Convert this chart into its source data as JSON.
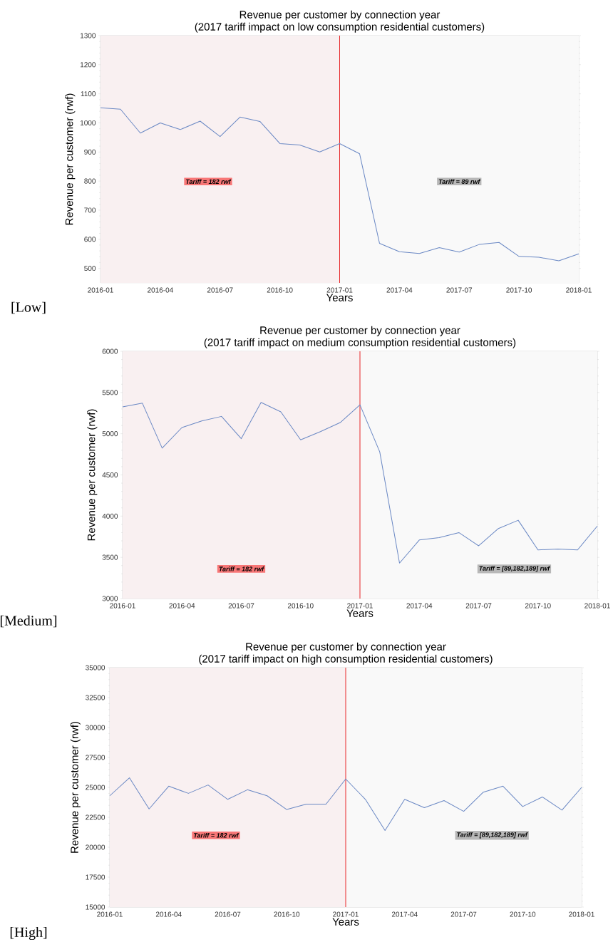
{
  "chart_data": [
    {
      "type": "line",
      "title": "Revenue per customer by connection year",
      "subtitle": "(2017 tariff impact on low consumption residential customers)",
      "xlabel": "Years",
      "ylabel": "Revenue per customer  (rwf)",
      "x": [
        "2016-01",
        "2016-02",
        "2016-03",
        "2016-04",
        "2016-05",
        "2016-06",
        "2016-07",
        "2016-08",
        "2016-09",
        "2016-10",
        "2016-11",
        "2016-12",
        "2017-01",
        "2017-02",
        "2017-03",
        "2017-04",
        "2017-05",
        "2017-06",
        "2017-07",
        "2017-08",
        "2017-09",
        "2017-10",
        "2017-11",
        "2017-12",
        "2018-01"
      ],
      "series": [
        {
          "color": "#6a88c4",
          "values": [
            1052,
            1047,
            965,
            1000,
            977,
            1006,
            953,
            1020,
            1005,
            929,
            924,
            900,
            929,
            894,
            586,
            557,
            551,
            571,
            556,
            582,
            589,
            541,
            538,
            526,
            550
          ]
        }
      ],
      "xlim": [
        "2016-01",
        "2018-01"
      ],
      "xticks": [
        "2016-01",
        "2016-04",
        "2016-07",
        "2016-10",
        "2017-01",
        "2017-04",
        "2017-07",
        "2017-10",
        "2018-01"
      ],
      "ylim": [
        450,
        1300
      ],
      "yticks": [
        500,
        600,
        700,
        800,
        900,
        1000,
        1100,
        1200,
        1300
      ],
      "grid": true,
      "ref_lines": [
        {
          "axis": "x",
          "value": "2017-01",
          "color": "#e8282b"
        }
      ],
      "bands": [
        {
          "axis": "x",
          "from": "2016-01",
          "to": "2017-01",
          "label": "Tariff = 182 rwf",
          "color": "#f9f0f1"
        },
        {
          "axis": "x",
          "from": "2017-01",
          "to": "2018-01",
          "label": "Tariff = 89 rwf",
          "color": "#f9f9f9"
        }
      ],
      "annotations": [
        "[Low]"
      ]
    },
    {
      "type": "line",
      "title": "Revenue per customer by connection year",
      "subtitle": "(2017 tariff impact on medium consumption residential customers)",
      "xlabel": "Years",
      "ylabel": "Revenue per customer  (rwf)",
      "x": [
        "2016-01",
        "2016-02",
        "2016-03",
        "2016-04",
        "2016-05",
        "2016-06",
        "2016-07",
        "2016-08",
        "2016-09",
        "2016-10",
        "2016-11",
        "2016-12",
        "2017-01",
        "2017-02",
        "2017-03",
        "2017-04",
        "2017-05",
        "2017-06",
        "2017-07",
        "2017-08",
        "2017-09",
        "2017-10",
        "2017-11",
        "2017-12",
        "2018-01"
      ],
      "series": [
        {
          "color": "#6a88c4",
          "values": [
            5325,
            5370,
            4825,
            5075,
            5155,
            5210,
            4940,
            5380,
            5265,
            4925,
            5025,
            5135,
            5350,
            4780,
            3430,
            3710,
            3740,
            3800,
            3640,
            3850,
            3950,
            3590,
            3600,
            3590,
            3880
          ]
        }
      ],
      "xlim": [
        "2016-01",
        "2018-01"
      ],
      "xticks": [
        "2016-01",
        "2016-04",
        "2016-07",
        "2016-10",
        "2017-01",
        "2017-04",
        "2017-07",
        "2017-10",
        "2018-01"
      ],
      "ylim": [
        3000,
        6000
      ],
      "yticks": [
        3000,
        3500,
        4000,
        4500,
        5000,
        5500,
        6000
      ],
      "grid": true,
      "ref_lines": [
        {
          "axis": "x",
          "value": "2017-01",
          "color": "#e8282b"
        }
      ],
      "bands": [
        {
          "axis": "x",
          "from": "2016-01",
          "to": "2017-01",
          "label": "Tariff = 182 rwf",
          "color": "#f9f0f1"
        },
        {
          "axis": "x",
          "from": "2017-01",
          "to": "2018-01",
          "label": "Tariff = [89,182,189] rwf",
          "color": "#f9f9f9"
        }
      ],
      "annotations": [
        "[Medium]"
      ]
    },
    {
      "type": "line",
      "title": "Revenue per customer by connection year",
      "subtitle": "(2017 tariff impact on high consumption residential customers)",
      "xlabel": "Years",
      "ylabel": "Revenue per customer  (rwf)",
      "x": [
        "2016-01",
        "2016-02",
        "2016-03",
        "2016-04",
        "2016-05",
        "2016-06",
        "2016-07",
        "2016-08",
        "2016-09",
        "2016-10",
        "2016-11",
        "2016-12",
        "2017-01",
        "2017-02",
        "2017-03",
        "2017-04",
        "2017-05",
        "2017-06",
        "2017-07",
        "2017-08",
        "2017-09",
        "2017-10",
        "2017-11",
        "2017-12",
        "2018-01"
      ],
      "series": [
        {
          "color": "#6a88c4",
          "values": [
            24300,
            25800,
            23200,
            25100,
            24500,
            25200,
            24000,
            24800,
            24300,
            23150,
            23600,
            23600,
            25700,
            24000,
            21400,
            24000,
            23300,
            23900,
            23000,
            24600,
            25100,
            23400,
            24200,
            23100,
            25000
          ]
        }
      ],
      "xlim": [
        "2016-01",
        "2018-01"
      ],
      "xticks": [
        "2016-01",
        "2016-04",
        "2016-07",
        "2016-10",
        "2017-01",
        "2017-04",
        "2017-07",
        "2017-10",
        "2018-01"
      ],
      "ylim": [
        15000,
        35000
      ],
      "yticks": [
        15000,
        17500,
        20000,
        22500,
        25000,
        27500,
        30000,
        32500,
        35000
      ],
      "grid": true,
      "ref_lines": [
        {
          "axis": "x",
          "value": "2017-01",
          "color": "#e8282b"
        }
      ],
      "bands": [
        {
          "axis": "x",
          "from": "2016-01",
          "to": "2017-01",
          "label": "Tariff = 182 rwf",
          "color": "#f9f0f1"
        },
        {
          "axis": "x",
          "from": "2017-01",
          "to": "2018-01",
          "label": "Tariff = [89,182,189] rwf",
          "color": "#f9f9f9"
        }
      ],
      "annotations": [
        "[High]"
      ]
    }
  ]
}
